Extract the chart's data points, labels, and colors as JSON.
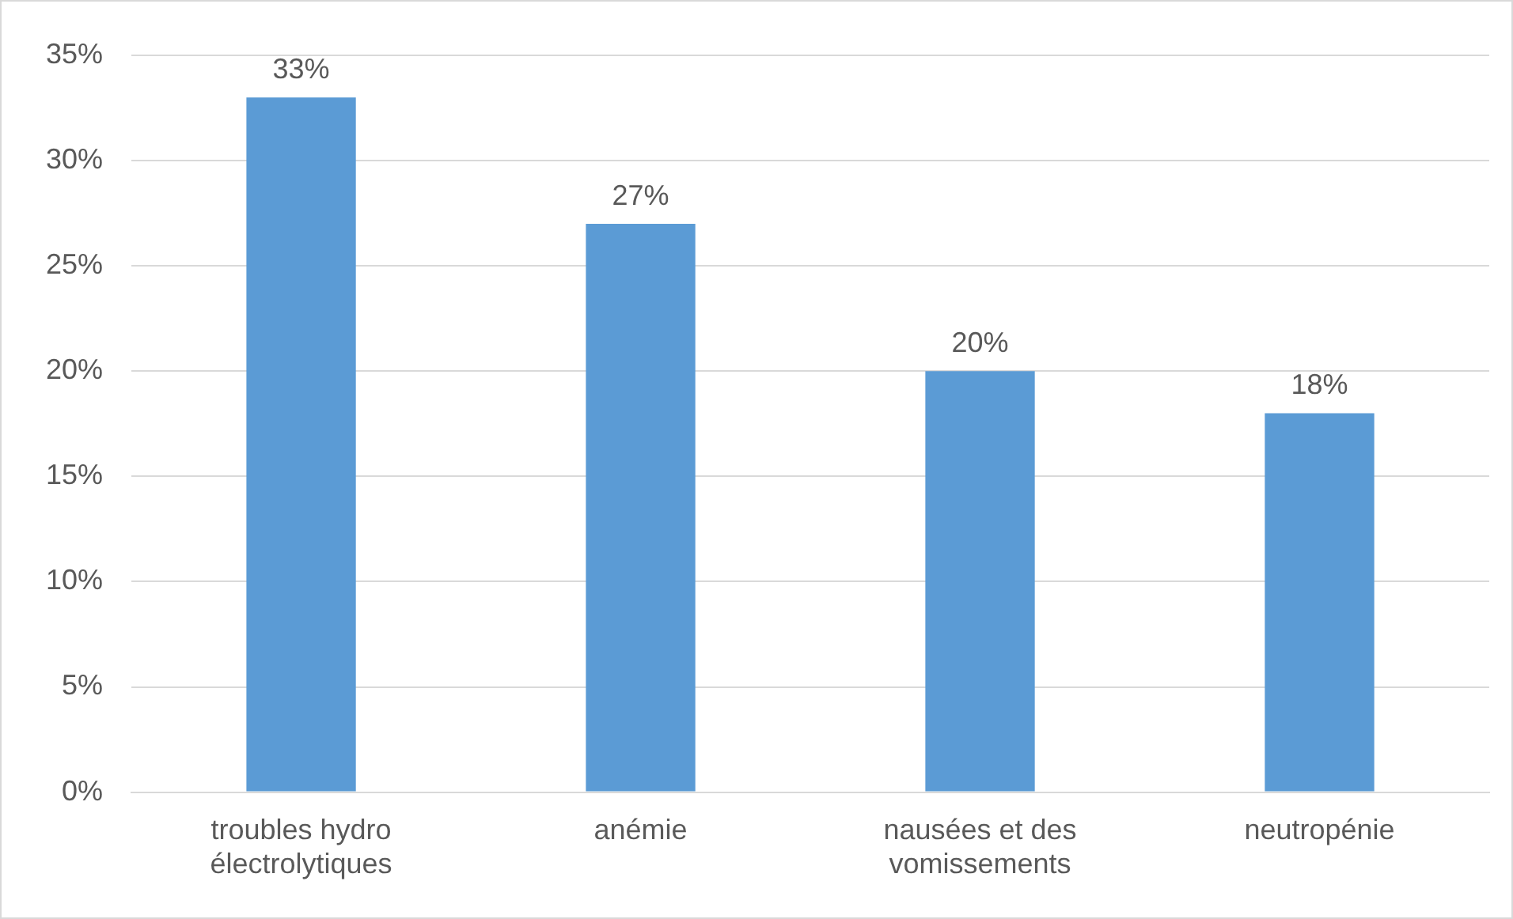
{
  "chart_data": {
    "type": "bar",
    "categories": [
      "troubles hydro électrolytiques",
      "anémie",
      "nausées et des vomissements",
      "neutropénie"
    ],
    "values": [
      33,
      27,
      20,
      18
    ],
    "value_labels": [
      "33%",
      "27%",
      "20%",
      "18%"
    ],
    "color": "#5b9bd5",
    "ylim": [
      0,
      35
    ],
    "yticks": [
      {
        "value": 0,
        "label": "0%"
      },
      {
        "value": 5,
        "label": "5%"
      },
      {
        "value": 10,
        "label": "10%"
      },
      {
        "value": 15,
        "label": "15%"
      },
      {
        "value": 20,
        "label": "20%"
      },
      {
        "value": 25,
        "label": "25%"
      },
      {
        "value": 30,
        "label": "30%"
      },
      {
        "value": 35,
        "label": "35%"
      }
    ],
    "grid": "y",
    "legend": false
  }
}
